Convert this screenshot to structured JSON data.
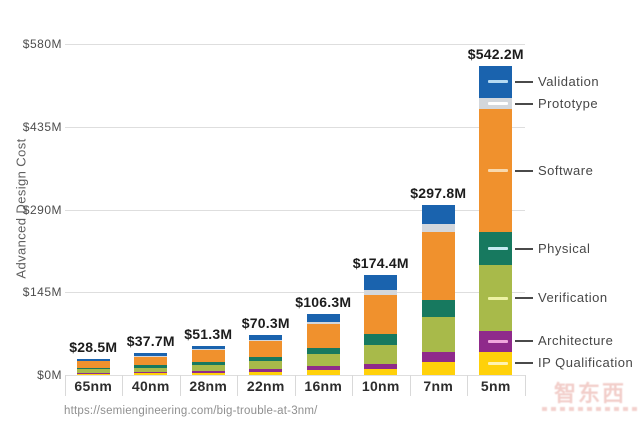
{
  "chart_data": {
    "type": "bar",
    "stacked": true,
    "title": "",
    "ylabel": "Advanced Design Cost",
    "units": "$M",
    "categories": [
      "65nm",
      "40nm",
      "28nm",
      "22nm",
      "16nm",
      "10nm",
      "7nm",
      "5nm"
    ],
    "totals": [
      28.5,
      37.7,
      51.3,
      70.3,
      106.3,
      174.4,
      297.8,
      542.2
    ],
    "total_labels": [
      "$28.5M",
      "$37.7M",
      "$51.3M",
      "$70.3M",
      "$106.3M",
      "$174.4M",
      "$297.8M",
      "$542.2M"
    ],
    "y_axis": {
      "tick_labels": [
        "$0M",
        "$145M",
        "$290M",
        "$435M",
        "$580M"
      ],
      "tick_values": [
        0,
        145,
        290,
        435,
        580
      ],
      "min": 0,
      "max": 580,
      "grid": true
    },
    "series_bottom_to_top": [
      {
        "name": "IP Qualification",
        "color": "#ffd10a",
        "tick_color": "#fff3b0",
        "values": [
          2.3,
          3.0,
          4.1,
          5.6,
          8.5,
          10.5,
          22.8,
          41.0
        ]
      },
      {
        "name": "Architecture",
        "color": "#8f2a8b",
        "tick_color": "#f0a6dd",
        "values": [
          1.8,
          2.4,
          3.2,
          4.4,
          6.7,
          8.8,
          17.5,
          36.0
        ]
      },
      {
        "name": "Verification",
        "color": "#a8ba4a",
        "tick_color": "#edf2a4",
        "values": [
          5.7,
          7.5,
          10.2,
          14.1,
          21.3,
          33.3,
          61.4,
          115.0
        ]
      },
      {
        "name": "Physical",
        "color": "#17795f",
        "tick_color": "#c6ebf2",
        "values": [
          2.9,
          3.9,
          5.3,
          7.2,
          10.9,
          19.3,
          29.3,
          58.0
        ]
      },
      {
        "name": "Software",
        "color": "#f0912d",
        "tick_color": "#f8d9ae",
        "values": [
          11.4,
          15.1,
          20.5,
          28.1,
          42.5,
          68.4,
          119.8,
          216.0
        ]
      },
      {
        "name": "Prototype",
        "color": "#d3d7dc",
        "tick_color": "#ffffff",
        "values": [
          1.0,
          1.3,
          1.8,
          2.5,
          3.7,
          8.2,
          14.6,
          19.2
        ]
      },
      {
        "name": "Validation",
        "color": "#1a63ae",
        "tick_color": "#b5daf2",
        "values": [
          3.4,
          4.5,
          6.2,
          8.4,
          12.7,
          25.9,
          32.4,
          57.0
        ]
      }
    ],
    "legend": {
      "position": "right",
      "order_top_to_bottom": [
        "Validation",
        "Prototype",
        "Software",
        "Physical",
        "Verification",
        "Architecture",
        "IP Qualification"
      ]
    }
  },
  "footer": {
    "source_url": "https://semiengineering.com/big-trouble-at-3nm/"
  },
  "watermark": {
    "text": "智东西"
  },
  "colors": {
    "grid": "#dedede",
    "axis_text": "#4d4d4d",
    "value_label": "#1c1c1c",
    "category_label": "#2d2d2d",
    "legend_text": "#474747",
    "leader_line": "#4a4a4a",
    "footer_text": "#8f8f8f",
    "watermark": "#de7d73"
  }
}
